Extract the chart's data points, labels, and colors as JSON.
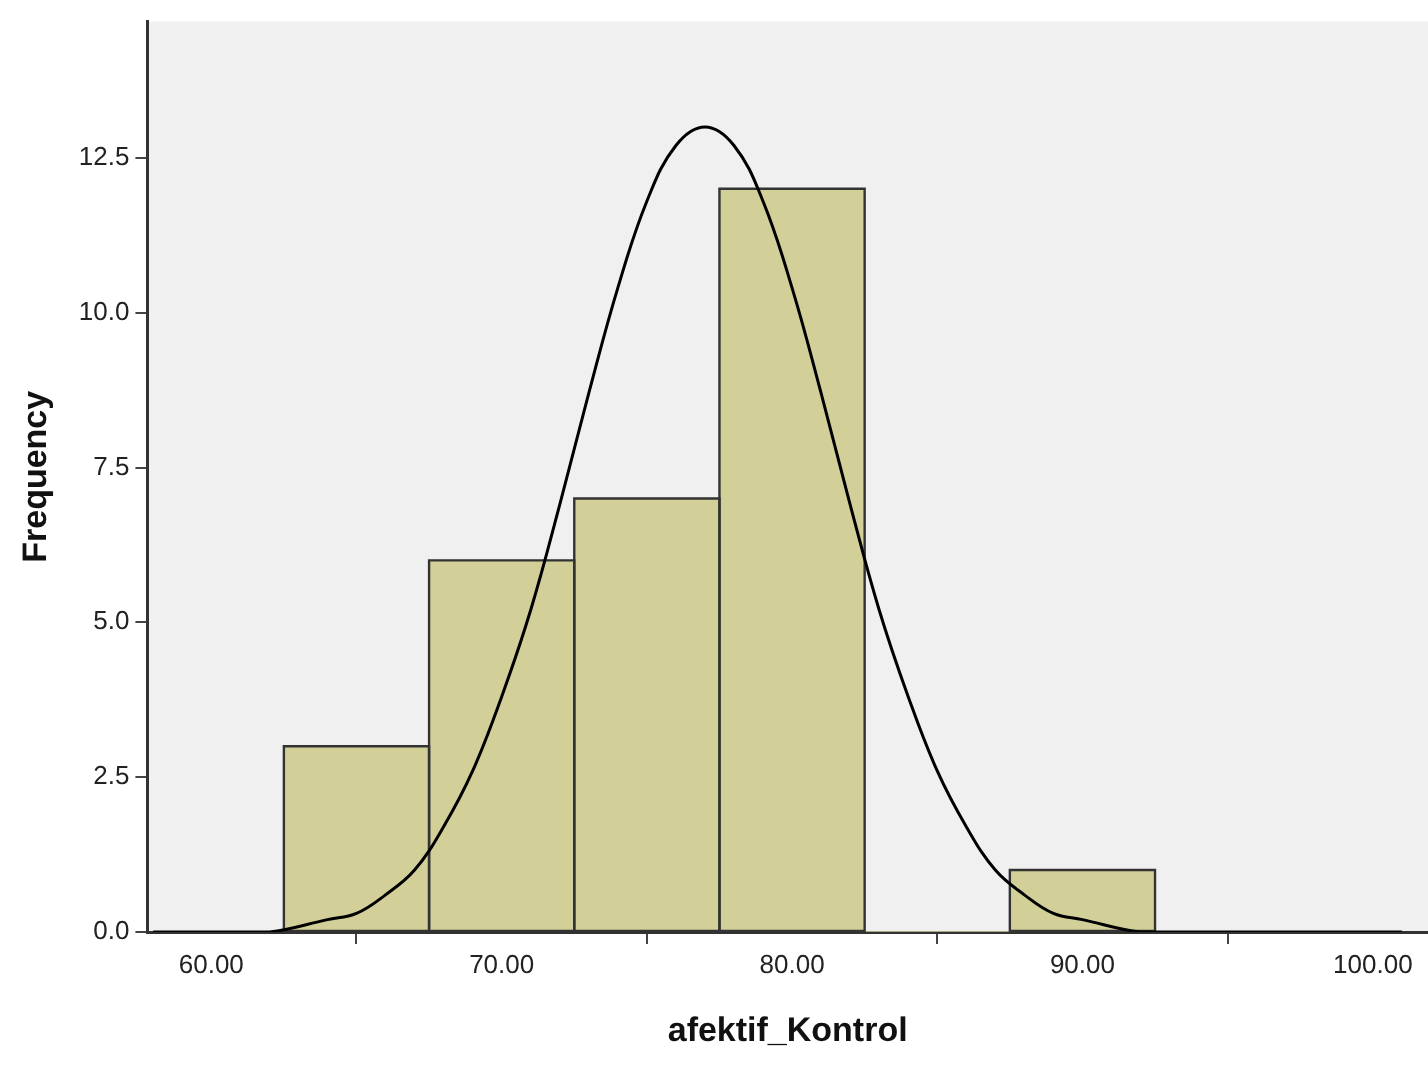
{
  "chart_data": {
    "type": "histogram",
    "xlabel": "afektif_Kontrol",
    "ylabel": "Frequency",
    "xlim": [
      57.8,
      101.9
    ],
    "ylim": [
      0,
      14.7
    ],
    "xticks": [
      {
        "value": 60,
        "label": "60.00"
      },
      {
        "value": 70,
        "label": "70.00"
      },
      {
        "value": 80,
        "label": "80.00"
      },
      {
        "value": 90,
        "label": "90.00"
      },
      {
        "value": 100,
        "label": "100.00"
      }
    ],
    "yticks": [
      {
        "value": 0,
        "label": "0.0"
      },
      {
        "value": 2.5,
        "label": "2.5"
      },
      {
        "value": 5,
        "label": "5.0"
      },
      {
        "value": 7.5,
        "label": "7.5"
      },
      {
        "value": 10,
        "label": "10.0"
      },
      {
        "value": 12.5,
        "label": "12.5"
      }
    ],
    "grid": false,
    "legend": false,
    "series": [
      {
        "color": "#d3cf99",
        "bins": [
          62.5,
          67.5,
          72.5,
          77.5,
          82.5,
          87.5,
          92.5
        ],
        "values": [
          3,
          6,
          7,
          12,
          0,
          1
        ]
      },
      {
        "type": "line",
        "color": "#000000",
        "marker": "none",
        "x": [
          58,
          60,
          62,
          64,
          65,
          66,
          67,
          68,
          69,
          70,
          71,
          72,
          73,
          74,
          75,
          76,
          77,
          78,
          79,
          80,
          81,
          82,
          83,
          84,
          85,
          86,
          87,
          88,
          89,
          90,
          92,
          94,
          96,
          101
        ],
        "values": [
          0,
          0,
          0,
          0.2,
          0.3,
          0.6,
          1.0,
          1.7,
          2.6,
          3.8,
          5.2,
          6.9,
          8.7,
          10.4,
          11.8,
          12.7,
          13.0,
          12.7,
          11.8,
          10.4,
          8.7,
          6.9,
          5.2,
          3.8,
          2.6,
          1.7,
          1.0,
          0.6,
          0.3,
          0.2,
          0,
          0,
          0,
          0
        ]
      }
    ]
  }
}
